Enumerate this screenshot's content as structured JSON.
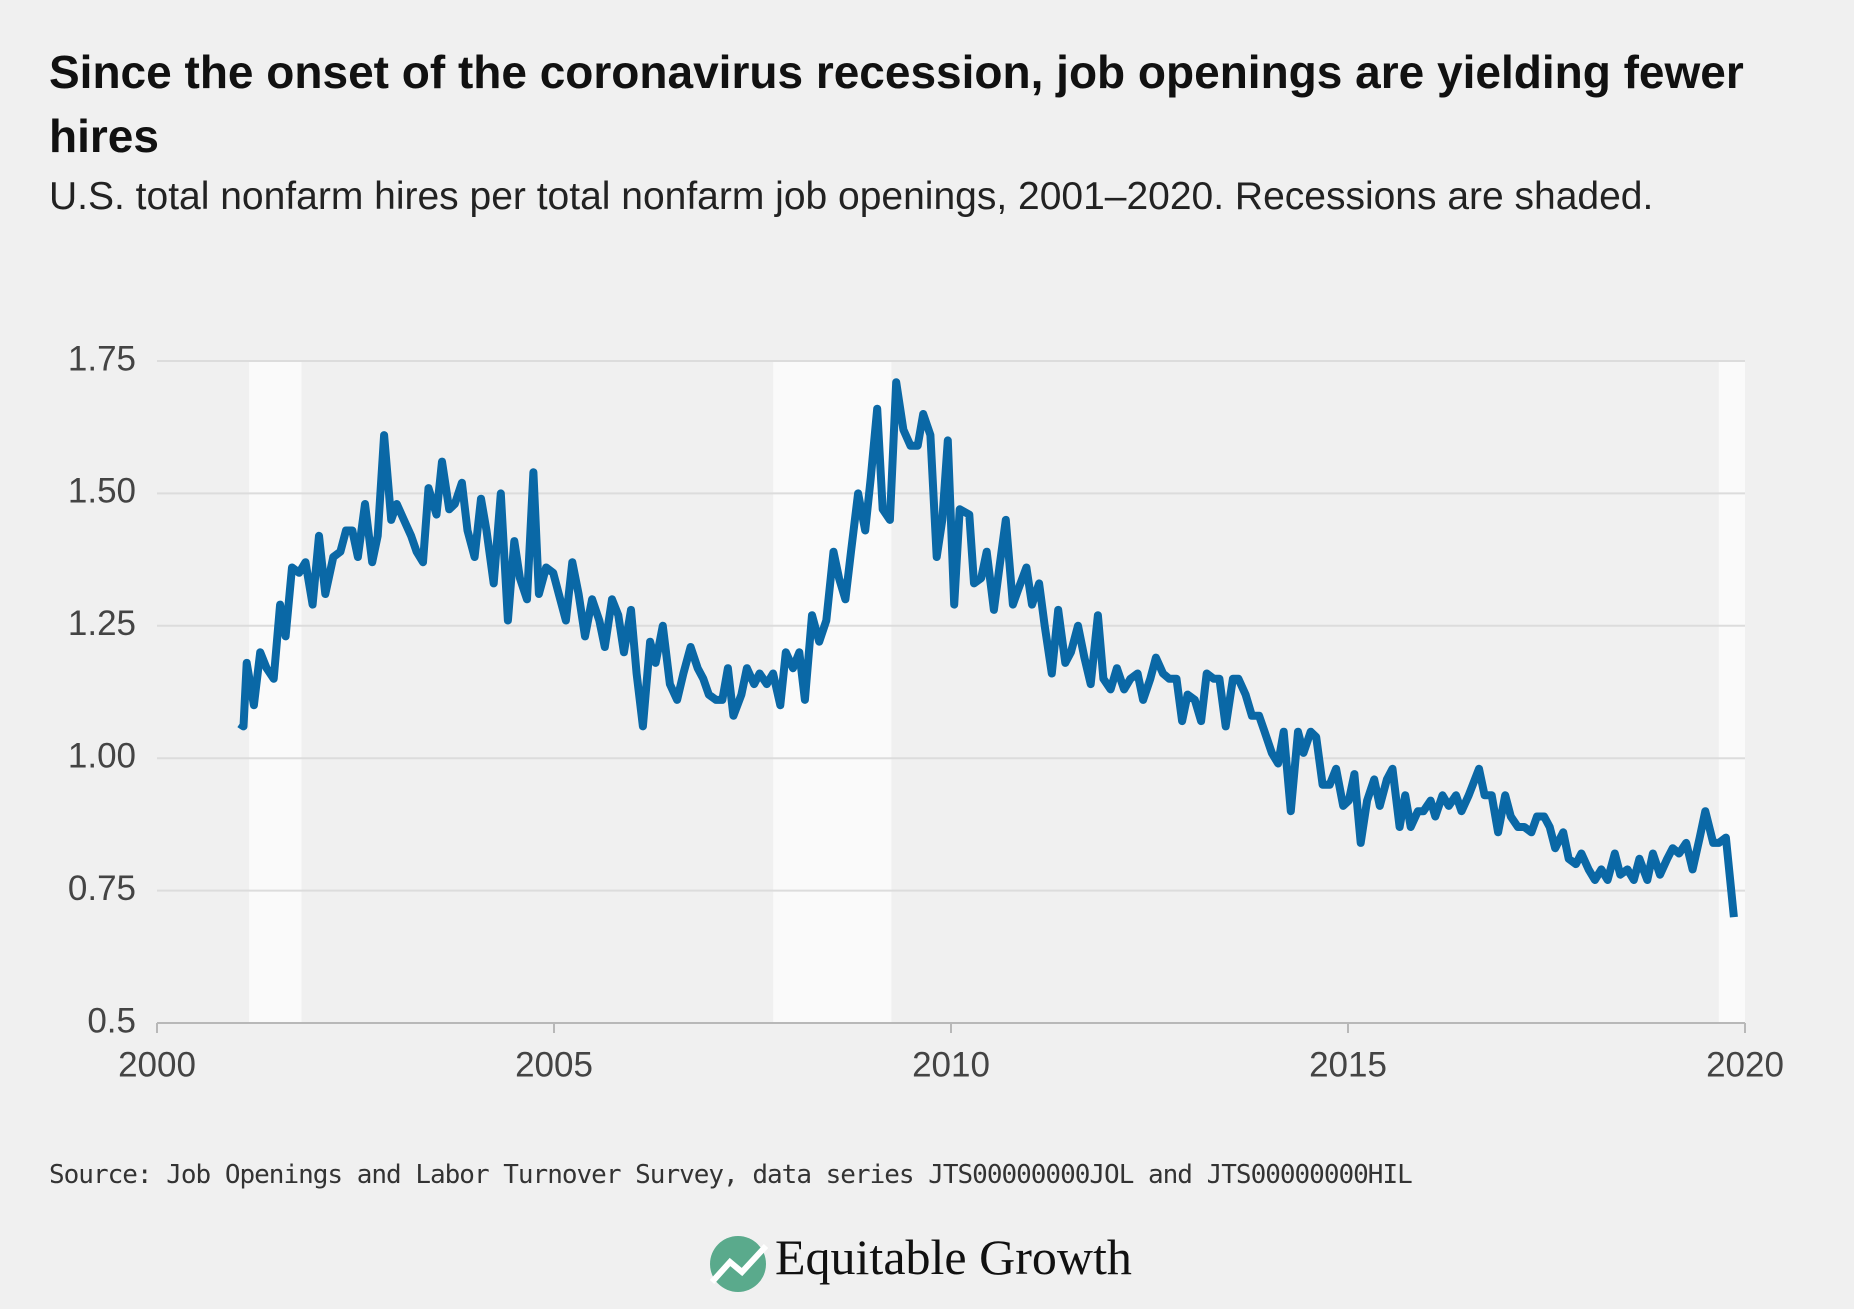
{
  "chart_data": {
    "type": "line",
    "title": "Since the onset of the coronavirus recession, job openings are yielding fewer hires",
    "subtitle": "U.S. total nonfarm hires per total nonfarm job openings, 2001–2020. Recessions are shaded.",
    "source": "Source: Job Openings and Labor Turnover Survey, data series JTS00000000JOL and JTS00000000HIL",
    "brand": "Equitable Growth",
    "recessions": [
      [
        2001.16,
        2001.82
      ],
      [
        2007.76,
        2009.25
      ],
      [
        2019.67,
        2020
      ]
    ],
    "xlim": [
      2000,
      2020
    ],
    "xticks": [
      2000,
      2005,
      2010,
      2015,
      2020
    ],
    "ylim": [
      0.5,
      1.75
    ],
    "yticks": [
      {
        "value": 0.5,
        "label": "0.5"
      },
      {
        "value": 0.75,
        "label": "0.75"
      },
      {
        "value": 1,
        "label": "1.00"
      },
      {
        "value": 1.25,
        "label": "1.25"
      },
      {
        "value": 1.5,
        "label": "1.50"
      },
      {
        "value": 1.75,
        "label": "1.75"
      }
    ],
    "grid": true,
    "x": [
      2001.04,
      2001.09,
      2001.13,
      2001.22,
      2001.3,
      2001.38,
      2001.47,
      2001.55,
      2001.62,
      2001.7,
      2001.79,
      2001.87,
      2001.96,
      2002.04,
      2002.12,
      2002.22,
      2002.31,
      2002.38,
      2002.46,
      2002.53,
      2002.62,
      2002.71,
      2002.78,
      2002.86,
      2002.95,
      2003.02,
      2003.11,
      2003.2,
      2003.27,
      2003.35,
      2003.42,
      2003.52,
      2003.59,
      2003.68,
      2003.75,
      2003.84,
      2003.91,
      2004.0,
      2004.08,
      2004.15,
      2004.24,
      2004.33,
      2004.42,
      2004.5,
      2004.57,
      2004.66,
      2004.74,
      2004.81,
      2004.9,
      2004.99,
      2005.06,
      2005.15,
      2005.23,
      2005.31,
      2005.39,
      2005.48,
      2005.57,
      2005.64,
      2005.73,
      2005.81,
      2005.88,
      2005.97,
      2006.04,
      2006.12,
      2006.21,
      2006.28,
      2006.37,
      2006.46,
      2006.55,
      2006.63,
      2006.72,
      2006.81,
      2006.88,
      2006.95,
      2007.04,
      2007.12,
      2007.19,
      2007.26,
      2007.36,
      2007.43,
      2007.52,
      2007.59,
      2007.68,
      2007.76,
      2007.85,
      2007.92,
      2008.01,
      2008.09,
      2008.16,
      2008.25,
      2008.34,
      2008.43,
      2008.52,
      2008.59,
      2008.67,
      2008.74,
      2008.83,
      2008.92,
      2008.99,
      2009.07,
      2009.14,
      2009.23,
      2009.31,
      2009.4,
      2009.49,
      2009.58,
      2009.65,
      2009.74,
      2009.82,
      2009.89,
      2009.96,
      2010.04,
      2010.11,
      2010.23,
      2010.29,
      2010.38,
      2010.45,
      2010.54,
      2010.61,
      2010.69,
      2010.78,
      2010.85,
      2010.95,
      2011.02,
      2011.11,
      2011.18,
      2011.27,
      2011.35,
      2011.44,
      2011.51,
      2011.6,
      2011.68,
      2011.76,
      2011.85,
      2011.92,
      2012.01,
      2012.09,
      2012.18,
      2012.26,
      2012.35,
      2012.42,
      2012.51,
      2012.58,
      2012.67,
      2012.75,
      2012.84,
      2012.91,
      2012.98,
      2013.07,
      2013.15,
      2013.22,
      2013.31,
      2013.38,
      2013.46,
      2013.55,
      2013.62,
      2013.71,
      2013.79,
      2013.88,
      2013.95,
      2014.04,
      2014.12,
      2014.19,
      2014.28,
      2014.37,
      2014.44,
      2014.53,
      2014.6,
      2014.68,
      2014.77,
      2014.85,
      2014.94,
      2015.01,
      2015.08,
      2015.16,
      2015.24,
      2015.33,
      2015.4,
      2015.49,
      2015.56,
      2015.65,
      2015.72,
      2015.79,
      2015.88,
      2015.95,
      2016.04,
      2016.1,
      2016.19,
      2016.27,
      2016.36,
      2016.43,
      2016.52,
      2016.65,
      2016.72,
      2016.81,
      2016.89,
      2016.98,
      2017.05,
      2017.14,
      2017.22,
      2017.31,
      2017.38,
      2017.47,
      2017.54,
      2017.61,
      2017.71,
      2017.78,
      2017.87,
      2017.94,
      2018.03,
      2018.11,
      2018.19,
      2018.27,
      2018.36,
      2018.43,
      2018.52,
      2018.6,
      2018.67,
      2018.77,
      2018.84,
      2018.93,
      2019.02,
      2019.09,
      2019.17,
      2019.26,
      2019.34,
      2019.43,
      2019.5,
      2019.6,
      2019.67,
      2019.76,
      2019.86
    ],
    "series": [
      {
        "name": "Hires per job opening",
        "color": "#0a68a6",
        "values": [
          1.065,
          1.06,
          1.18,
          1.1,
          1.2,
          1.17,
          1.15,
          1.29,
          1.23,
          1.36,
          1.35,
          1.37,
          1.29,
          1.42,
          1.31,
          1.38,
          1.39,
          1.43,
          1.43,
          1.38,
          1.48,
          1.37,
          1.42,
          1.61,
          1.45,
          1.48,
          1.45,
          1.42,
          1.39,
          1.37,
          1.51,
          1.46,
          1.56,
          1.47,
          1.48,
          1.52,
          1.43,
          1.38,
          1.49,
          1.43,
          1.33,
          1.5,
          1.26,
          1.41,
          1.34,
          1.3,
          1.54,
          1.31,
          1.36,
          1.35,
          1.31,
          1.26,
          1.37,
          1.31,
          1.23,
          1.3,
          1.26,
          1.21,
          1.3,
          1.27,
          1.2,
          1.28,
          1.16,
          1.06,
          1.22,
          1.18,
          1.25,
          1.14,
          1.11,
          1.16,
          1.21,
          1.17,
          1.15,
          1.12,
          1.11,
          1.11,
          1.17,
          1.08,
          1.12,
          1.17,
          1.14,
          1.16,
          1.14,
          1.16,
          1.1,
          1.2,
          1.17,
          1.2,
          1.11,
          1.27,
          1.22,
          1.26,
          1.39,
          1.34,
          1.3,
          1.39,
          1.5,
          1.43,
          1.53,
          1.66,
          1.47,
          1.45,
          1.71,
          1.62,
          1.59,
          1.59,
          1.65,
          1.61,
          1.38,
          1.45,
          1.6,
          1.29,
          1.47,
          1.46,
          1.33,
          1.34,
          1.39,
          1.28,
          1.36,
          1.45,
          1.29,
          1.32,
          1.36,
          1.29,
          1.33,
          1.25,
          1.16,
          1.28,
          1.18,
          1.2,
          1.25,
          1.19,
          1.14,
          1.27,
          1.15,
          1.13,
          1.17,
          1.13,
          1.15,
          1.16,
          1.11,
          1.15,
          1.19,
          1.16,
          1.15,
          1.15,
          1.07,
          1.12,
          1.11,
          1.07,
          1.16,
          1.15,
          1.15,
          1.06,
          1.15,
          1.15,
          1.12,
          1.08,
          1.08,
          1.05,
          1.01,
          0.99,
          1.05,
          0.9,
          1.05,
          1.01,
          1.05,
          1.04,
          0.95,
          0.95,
          0.98,
          0.91,
          0.92,
          0.97,
          0.84,
          0.92,
          0.96,
          0.91,
          0.96,
          0.98,
          0.87,
          0.93,
          0.87,
          0.9,
          0.9,
          0.92,
          0.89,
          0.93,
          0.91,
          0.93,
          0.9,
          0.93,
          0.98,
          0.93,
          0.93,
          0.86,
          0.93,
          0.89,
          0.87,
          0.87,
          0.86,
          0.89,
          0.89,
          0.87,
          0.83,
          0.86,
          0.81,
          0.8,
          0.82,
          0.79,
          0.77,
          0.79,
          0.77,
          0.82,
          0.78,
          0.79,
          0.77,
          0.81,
          0.77,
          0.82,
          0.78,
          0.81,
          0.83,
          0.82,
          0.84,
          0.79,
          0.85,
          0.9,
          0.84,
          0.84,
          0.85,
          0.7
        ]
      }
    ]
  }
}
